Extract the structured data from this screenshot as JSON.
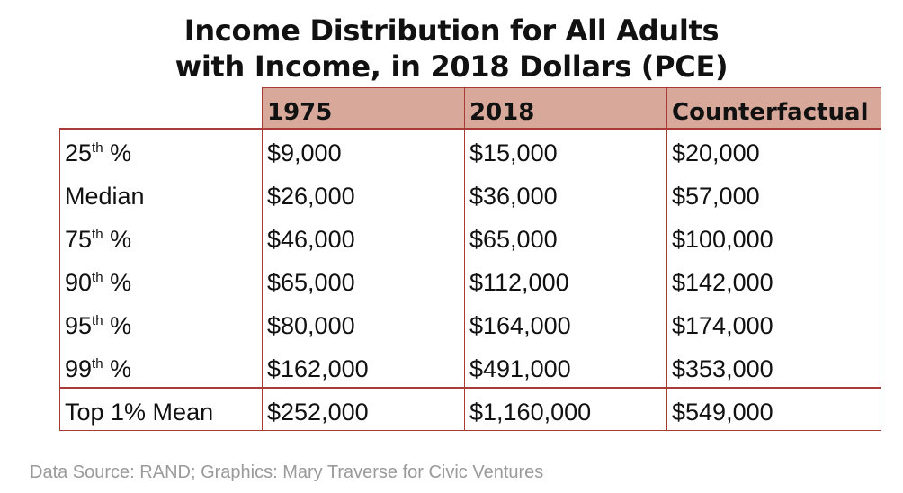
{
  "chart_data": {
    "type": "table",
    "title": [
      "Income Distribution for All Adults",
      "with Income, in 2018 Dollars (PCE)"
    ],
    "columns": [
      "1975",
      "2018",
      "Counterfactual"
    ],
    "rows": [
      {
        "label": "25",
        "sup": "th",
        "suffix": " %",
        "values": [
          "$9,000",
          "$15,000",
          "$20,000"
        ]
      },
      {
        "label": "Median",
        "sup": "",
        "suffix": "",
        "values": [
          "$26,000",
          "$36,000",
          "$57,000"
        ]
      },
      {
        "label": "75",
        "sup": "th",
        "suffix": " %",
        "values": [
          "$46,000",
          "$65,000",
          "$100,000"
        ]
      },
      {
        "label": "90",
        "sup": "th",
        "suffix": " %",
        "values": [
          "$65,000",
          "$112,000",
          "$142,000"
        ]
      },
      {
        "label": "95",
        "sup": "th",
        "suffix": " %",
        "values": [
          "$80,000",
          "$164,000",
          "$174,000"
        ]
      },
      {
        "label": "99",
        "sup": "th",
        "suffix": " %",
        "values": [
          "$162,000",
          "$491,000",
          "$353,000"
        ]
      },
      {
        "label": "Top 1% Mean",
        "sup": "",
        "suffix": "",
        "values": [
          "$252,000",
          "$1,160,000",
          "$549,000"
        ]
      }
    ]
  },
  "source": "Data Source: RAND; Graphics: Mary Traverse for Civic Ventures",
  "colors": {
    "header_fill": "#d8a99b",
    "border": "#a83b37",
    "source_text": "#9a9a9a"
  }
}
